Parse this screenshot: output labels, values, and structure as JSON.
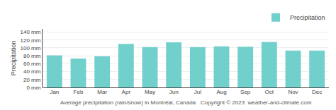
{
  "chart_data": {
    "type": "bar",
    "categories": [
      "Jan",
      "Feb",
      "Mar",
      "Apr",
      "May",
      "Jun",
      "Jul",
      "Aug",
      "Sep",
      "Oct",
      "Nov",
      "Dec"
    ],
    "series": [
      {
        "name": "Precipitation",
        "color": "#72d0cc",
        "values": [
          81,
          73,
          79,
          110,
          102,
          114,
          102,
          104,
          103,
          115,
          93,
          93
        ]
      }
    ],
    "ylabel": "Precipitation",
    "ylim": [
      0,
      148
    ],
    "yticks": [
      {
        "value": 0,
        "label": "0 mm"
      },
      {
        "value": 20,
        "label": "20 mm"
      },
      {
        "value": 40,
        "label": "40 mm"
      },
      {
        "value": 60,
        "label": "60 mm"
      },
      {
        "value": 80,
        "label": "80 mm"
      },
      {
        "value": 100,
        "label": "100 mm"
      },
      {
        "value": 120,
        "label": "120 mm"
      },
      {
        "value": 140,
        "label": "140 mm"
      }
    ],
    "grid": true,
    "legend": "upper right",
    "annotations": [
      "Average precipitation (rain/snow) in Montréal, Canada",
      "Copyright © 2023  weather-and-climate.com"
    ]
  }
}
